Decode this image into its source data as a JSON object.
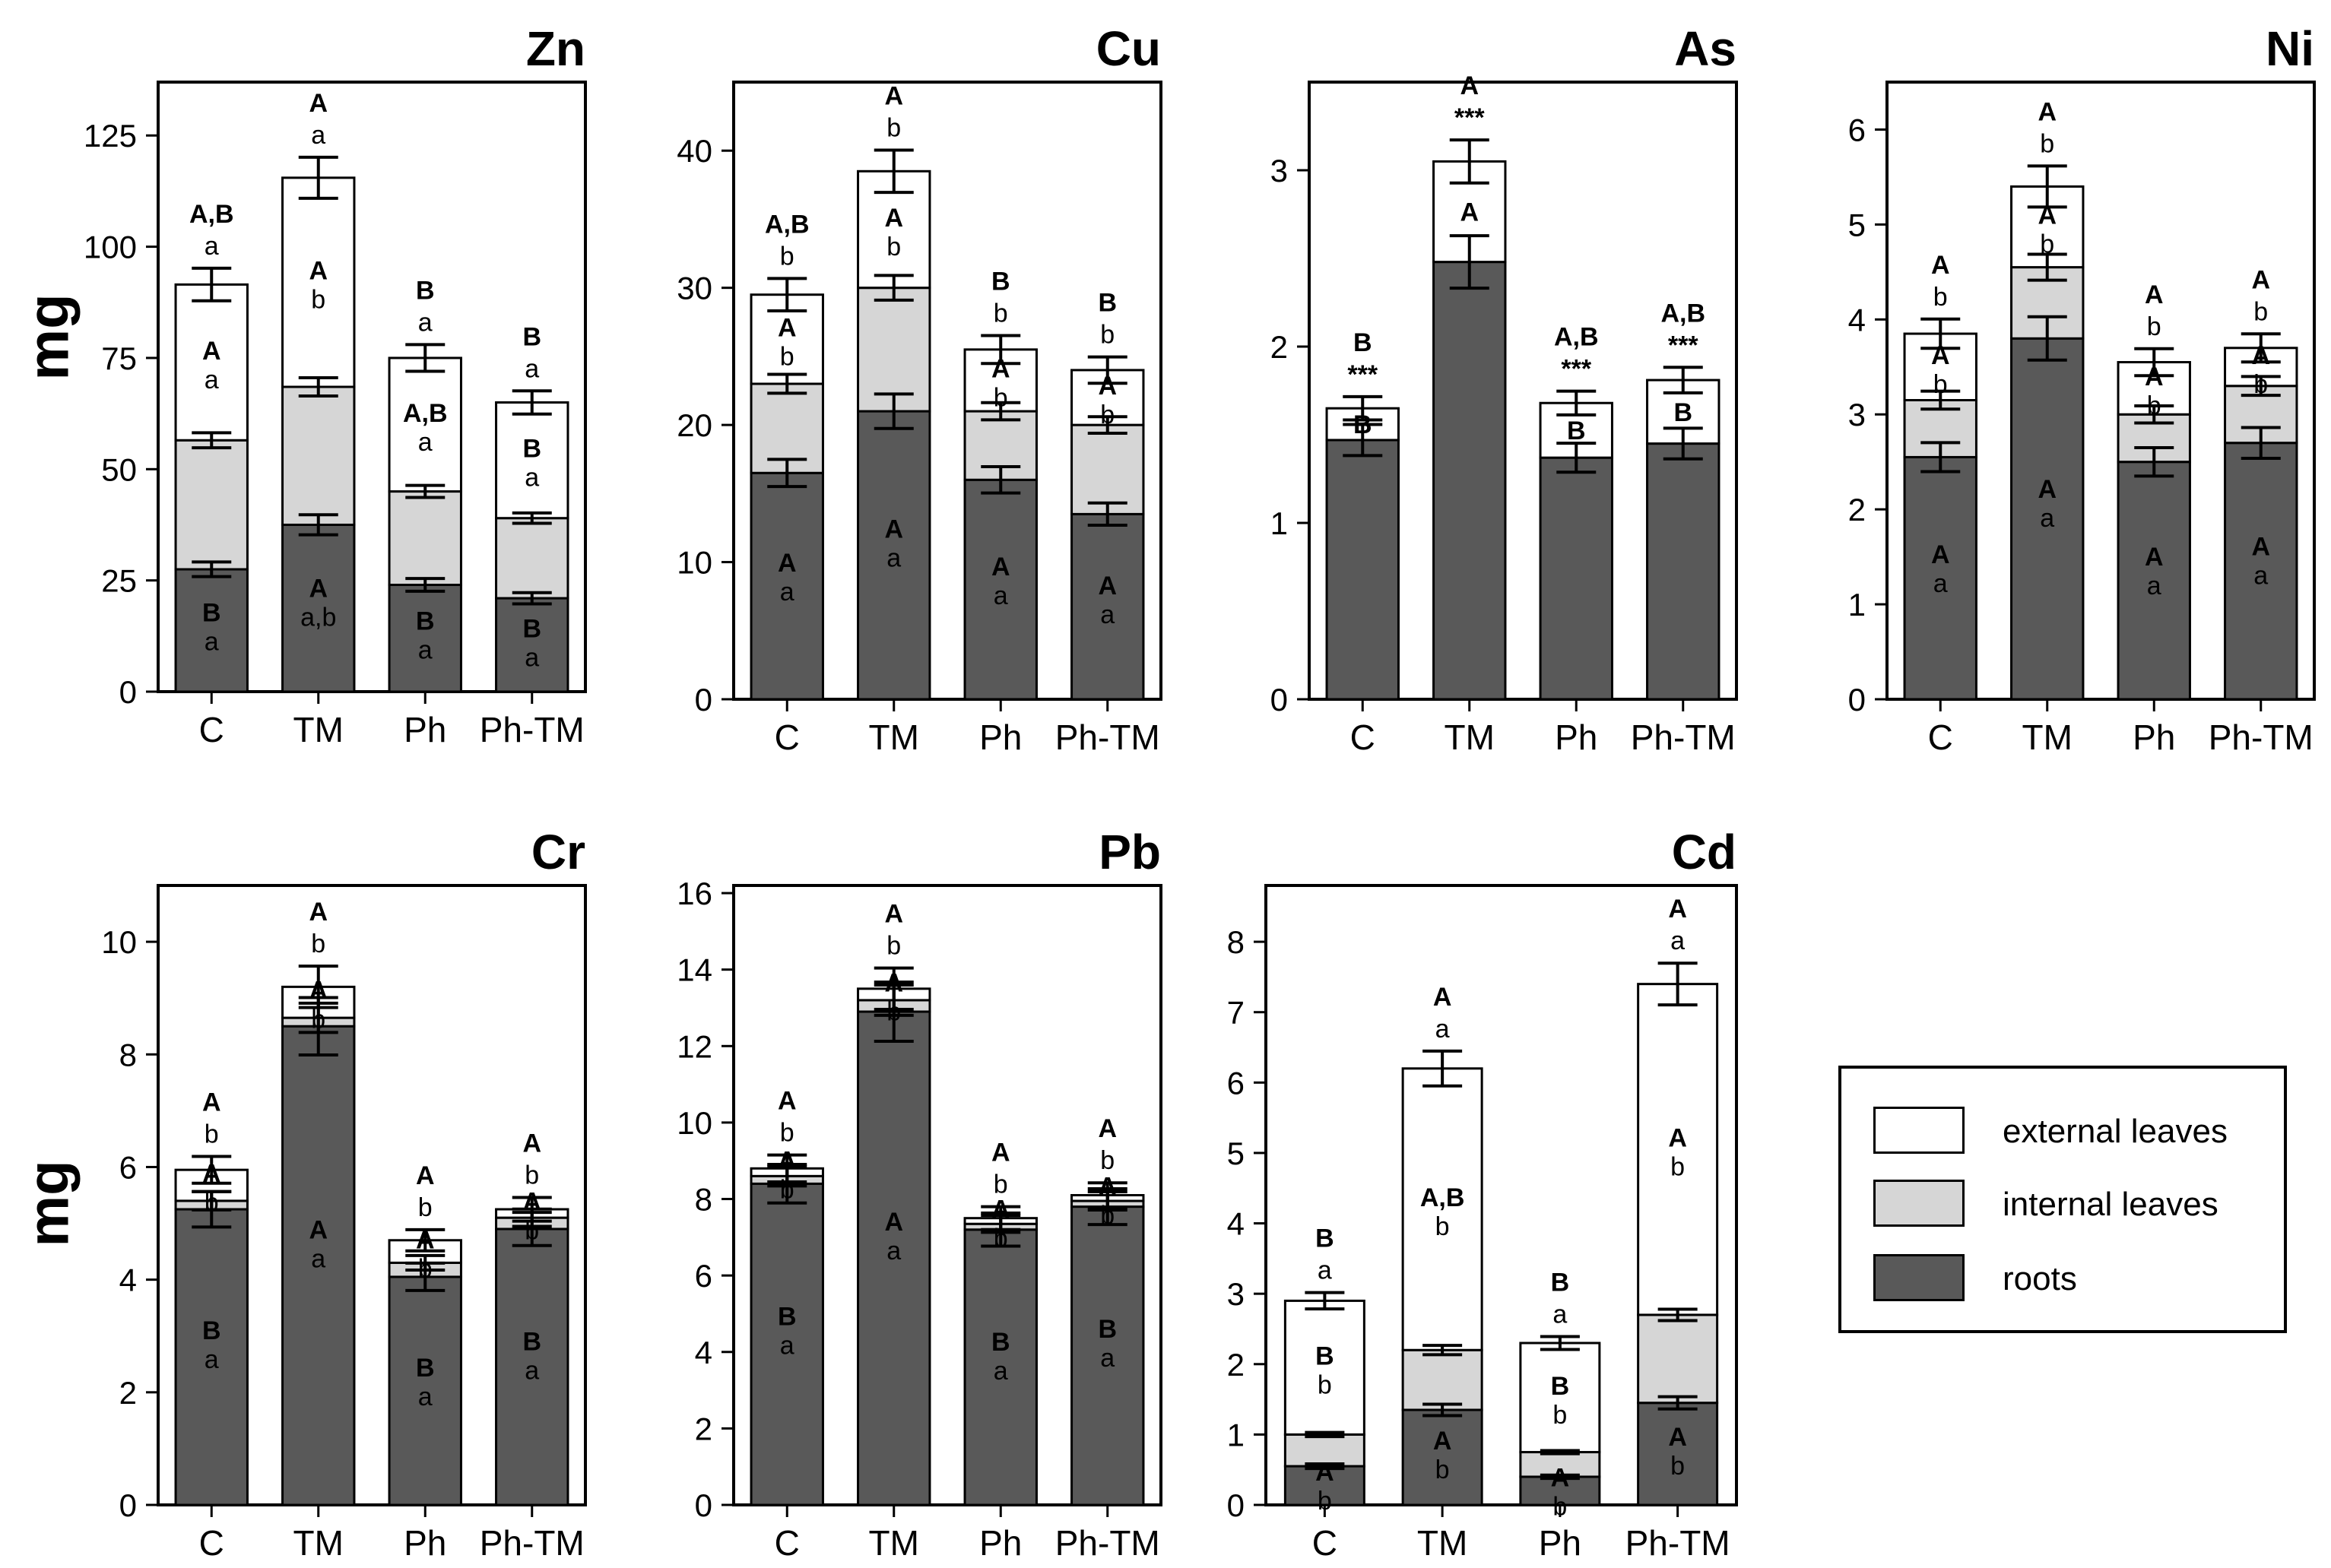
{
  "y_axis_label": "mg",
  "legend": {
    "items": [
      {
        "label": "external leaves",
        "color": "#ffffff"
      },
      {
        "label": "internal leaves",
        "color": "#d6d6d6"
      },
      {
        "label": "roots",
        "color": "#595959"
      }
    ]
  },
  "chart_data": [
    {
      "title": "Zn",
      "type": "bar",
      "stacked": true,
      "ylim": [
        0,
        137
      ],
      "yticks": [
        0,
        25,
        50,
        75,
        100,
        125
      ],
      "categories": [
        "C",
        "TM",
        "Ph",
        "Ph-TM"
      ],
      "series": [
        {
          "name": "roots",
          "values": [
            27.5,
            37.5,
            24,
            21
          ]
        },
        {
          "name": "internal leaves",
          "values": [
            29,
            31,
            21,
            18
          ]
        },
        {
          "name": "external leaves",
          "values": [
            35,
            47,
            30,
            26
          ]
        }
      ],
      "totals": [
        91.5,
        115.5,
        75,
        65
      ],
      "error_tops": [
        [
          27.5,
          28.5
        ],
        [
          37.5,
          39
        ],
        [
          24,
          28
        ],
        [
          21,
          23.5
        ]
      ],
      "error_mids": [
        [
          56.5,
          59
        ],
        [
          68.5,
          69.5
        ],
        [
          45,
          47
        ],
        [
          39,
          42
        ]
      ],
      "error_tot": [
        [
          87,
          96
        ],
        [
          110.5,
          121.5
        ],
        [
          74.5,
          76
        ],
        [
          63.5,
          66.5
        ]
      ],
      "ann_top": [
        [
          "A,B",
          "a"
        ],
        [
          "A",
          "a"
        ],
        [
          "B",
          "a"
        ],
        [
          "B",
          "a"
        ]
      ],
      "ann_ext": [
        [
          "A",
          "a"
        ],
        [
          "A",
          "b"
        ],
        [
          "A,B",
          "a"
        ],
        [
          "B",
          "a"
        ]
      ],
      "ann_int": [
        [
          "B",
          "a"
        ],
        [
          "A",
          "a,b"
        ],
        [
          "B",
          "a"
        ],
        [
          "B",
          "a"
        ]
      ]
    },
    {
      "title": "Cu",
      "type": "bar",
      "stacked": true,
      "ylim": [
        0,
        45
      ],
      "yticks": [
        0,
        10,
        20,
        30,
        40
      ],
      "categories": [
        "C",
        "TM",
        "Ph",
        "Ph-TM"
      ],
      "series": [
        {
          "name": "roots",
          "values": [
            16.5,
            21,
            16,
            13.5
          ]
        },
        {
          "name": "internal leaves",
          "values": [
            6.5,
            9,
            5,
            6.5
          ]
        },
        {
          "name": "external leaves",
          "values": [
            6.5,
            8.5,
            4.5,
            4
          ]
        }
      ],
      "totals": [
        29.5,
        38.5,
        25.5,
        24
      ],
      "ann_top": [
        [
          "A,B",
          "b"
        ],
        [
          "A",
          "b"
        ],
        [
          "B",
          "b"
        ],
        [
          "B",
          "b"
        ]
      ],
      "ann_ext": [
        [
          "A",
          "b"
        ],
        [
          "A",
          "b"
        ],
        [
          "A",
          "b"
        ],
        [
          "A",
          "b"
        ]
      ],
      "ann_int": [
        [
          "A",
          "a"
        ],
        [
          "A",
          "a"
        ],
        [
          "A",
          "a"
        ],
        [
          "A",
          "a"
        ]
      ]
    },
    {
      "title": "As",
      "type": "bar",
      "stacked": true,
      "ylim": [
        0,
        3.5
      ],
      "yticks": [
        0,
        1,
        2,
        3
      ],
      "categories": [
        "C",
        "TM",
        "Ph",
        "Ph-TM"
      ],
      "series": [
        {
          "name": "roots",
          "values": [
            1.47,
            2.48,
            1.37,
            1.45
          ]
        },
        {
          "name": "internal leaves",
          "values": [
            0,
            0,
            0,
            0
          ]
        },
        {
          "name": "external leaves",
          "values": [
            0.18,
            0.57,
            0.31,
            0.36
          ]
        }
      ],
      "totals": [
        1.65,
        3.05,
        1.68,
        1.81
      ],
      "ann_top": [
        [
          "B",
          "***"
        ],
        [
          "A",
          "***"
        ],
        [
          "A,B",
          "***"
        ],
        [
          "A,B",
          "***"
        ]
      ],
      "ann_ext": [
        [
          "B",
          ""
        ],
        [
          "A",
          ""
        ],
        [
          "B",
          ""
        ],
        [
          "B",
          ""
        ]
      ],
      "ann_int": []
    },
    {
      "title": "Ni",
      "type": "bar",
      "stacked": true,
      "ylim": [
        0,
        6.5
      ],
      "yticks": [
        0,
        1,
        2,
        3,
        4,
        5,
        6
      ],
      "categories": [
        "C",
        "TM",
        "Ph",
        "Ph-TM"
      ],
      "series": [
        {
          "name": "roots",
          "values": [
            2.55,
            3.8,
            2.5,
            2.7
          ]
        },
        {
          "name": "internal leaves",
          "values": [
            0.6,
            0.75,
            0.5,
            0.6
          ]
        },
        {
          "name": "external leaves",
          "values": [
            0.7,
            0.85,
            0.55,
            0.4
          ]
        }
      ],
      "totals": [
        3.85,
        5.4,
        3.55,
        3.7
      ],
      "ann_top": [
        [
          "A",
          "b"
        ],
        [
          "A",
          "b"
        ],
        [
          "A",
          "b"
        ],
        [
          "A",
          "b"
        ]
      ],
      "ann_ext": [
        [
          "A",
          "b"
        ],
        [
          "A",
          "b"
        ],
        [
          "A",
          "b"
        ],
        [
          "A",
          "b"
        ]
      ],
      "ann_int": [
        [
          "A",
          "a"
        ],
        [
          "A",
          "a"
        ],
        [
          "A",
          "a"
        ],
        [
          "A",
          "a"
        ]
      ]
    },
    {
      "title": "Cr",
      "type": "bar",
      "stacked": true,
      "ylim": [
        0,
        11
      ],
      "yticks": [
        0,
        2,
        4,
        6,
        8,
        10
      ],
      "categories": [
        "C",
        "TM",
        "Ph",
        "Ph-TM"
      ],
      "series": [
        {
          "name": "roots",
          "values": [
            5.25,
            8.5,
            4.05,
            4.9
          ]
        },
        {
          "name": "internal leaves",
          "values": [
            0.15,
            0.15,
            0.25,
            0.2
          ]
        },
        {
          "name": "external leaves",
          "values": [
            0.55,
            0.55,
            0.4,
            0.15
          ]
        }
      ],
      "totals": [
        5.95,
        9.2,
        4.7,
        5.25
      ],
      "ann_top": [
        [
          "A",
          "b"
        ],
        [
          "A",
          "b"
        ],
        [
          "A",
          "b"
        ],
        [
          "A",
          "b"
        ]
      ],
      "ann_ext": [
        [
          "A",
          "b"
        ],
        [
          "A",
          "b"
        ],
        [
          "A",
          "b"
        ],
        [
          "A",
          "b"
        ]
      ],
      "ann_int": [
        [
          "B",
          "a"
        ],
        [
          "A",
          "a"
        ],
        [
          "B",
          "a"
        ],
        [
          "B",
          "a"
        ]
      ]
    },
    {
      "title": "Pb",
      "type": "bar",
      "stacked": true,
      "ylim": [
        0,
        16.2
      ],
      "yticks": [
        0,
        2,
        4,
        6,
        8,
        10,
        12,
        14,
        16
      ],
      "categories": [
        "C",
        "TM",
        "Ph",
        "Ph-TM"
      ],
      "series": [
        {
          "name": "roots",
          "values": [
            8.4,
            12.9,
            7.2,
            7.8
          ]
        },
        {
          "name": "internal leaves",
          "values": [
            0.2,
            0.3,
            0.15,
            0.15
          ]
        },
        {
          "name": "external leaves",
          "values": [
            0.2,
            0.3,
            0.15,
            0.15
          ]
        }
      ],
      "totals": [
        8.8,
        13.5,
        7.5,
        8.1
      ],
      "ann_top": [
        [
          "A",
          "b"
        ],
        [
          "A",
          "b"
        ],
        [
          "A",
          "b"
        ],
        [
          "A",
          "b"
        ]
      ],
      "ann_ext": [
        [
          "A",
          "b"
        ],
        [
          "A",
          "b"
        ],
        [
          "A",
          "b"
        ],
        [
          "A",
          "b"
        ]
      ],
      "ann_int": [
        [
          "B",
          "a"
        ],
        [
          "A",
          "a"
        ],
        [
          "B",
          "a"
        ],
        [
          "B",
          "a"
        ]
      ]
    },
    {
      "title": "Cd",
      "type": "bar",
      "stacked": true,
      "ylim": [
        0,
        8.8
      ],
      "yticks": [
        0,
        1,
        2,
        3,
        4,
        5,
        6,
        7,
        8
      ],
      "categories": [
        "C",
        "TM",
        "Ph",
        "Ph-TM"
      ],
      "series": [
        {
          "name": "roots",
          "values": [
            0.55,
            1.35,
            0.4,
            1.45
          ]
        },
        {
          "name": "internal leaves",
          "values": [
            0.45,
            0.85,
            0.35,
            1.25
          ]
        },
        {
          "name": "external leaves",
          "values": [
            1.9,
            4.0,
            1.55,
            4.7
          ]
        }
      ],
      "totals": [
        2.9,
        6.2,
        2.3,
        7.4
      ],
      "ann_top": [
        [
          "B",
          "a"
        ],
        [
          "A",
          "a"
        ],
        [
          "B",
          "a"
        ],
        [
          "A",
          "a"
        ]
      ],
      "ann_ext": [
        [
          "B",
          "b"
        ],
        [
          "A,B",
          "b"
        ],
        [
          "B",
          "b"
        ],
        [
          "A",
          "b"
        ]
      ],
      "ann_int": [
        [
          "A",
          "b"
        ],
        [
          "A",
          "b"
        ],
        [
          "A",
          "b"
        ],
        [
          "A",
          "b"
        ]
      ]
    }
  ]
}
